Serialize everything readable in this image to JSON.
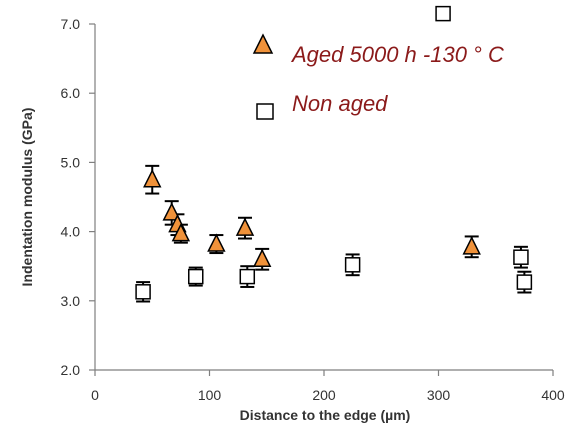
{
  "chart_data": {
    "type": "scatter",
    "xlabel": "Distance to the edge  (µm)",
    "ylabel": "Indentation modulus (GPa)",
    "xlim": [
      0,
      400
    ],
    "ylim": [
      2.0,
      7.0
    ],
    "x_ticks": [
      "0",
      "100",
      "200",
      "300",
      "400"
    ],
    "y_ticks": [
      "2.0",
      "3.0",
      "4.0",
      "5.0",
      "6.0",
      "7.0"
    ],
    "grid": false,
    "legend_position": "top-right",
    "series": [
      {
        "name": "Aged 5000 h  -130  ° C",
        "marker": "triangle",
        "color": "#f0923a",
        "points": [
          {
            "x": 50,
            "y": 4.75,
            "err": 0.2
          },
          {
            "x": 67,
            "y": 4.27,
            "err": 0.17
          },
          {
            "x": 72,
            "y": 4.1,
            "err": 0.15
          },
          {
            "x": 75,
            "y": 3.97,
            "err": 0.13
          },
          {
            "x": 106,
            "y": 3.82,
            "err": 0.13
          },
          {
            "x": 131,
            "y": 4.05,
            "err": 0.15
          },
          {
            "x": 146,
            "y": 3.6,
            "err": 0.15
          },
          {
            "x": 329,
            "y": 3.78,
            "err": 0.15
          }
        ]
      },
      {
        "name": "Non aged",
        "marker": "square",
        "color": "#ffffff",
        "points": [
          {
            "x": 42,
            "y": 3.13,
            "err": 0.14
          },
          {
            "x": 88,
            "y": 3.35,
            "err": 0.13
          },
          {
            "x": 133,
            "y": 3.35,
            "err": 0.15
          },
          {
            "x": 225,
            "y": 3.52,
            "err": 0.15
          },
          {
            "x": 372,
            "y": 3.63,
            "err": 0.15
          },
          {
            "x": 375,
            "y": 3.27,
            "err": 0.15
          },
          {
            "x": 304,
            "y": 7.15,
            "err": 0
          }
        ]
      }
    ]
  }
}
